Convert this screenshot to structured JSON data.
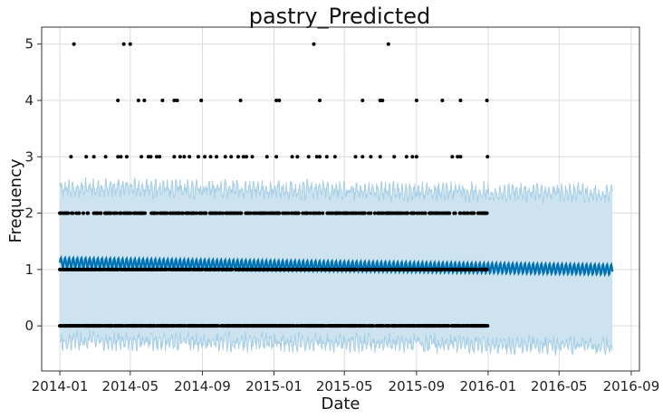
{
  "chart_data": {
    "type": "scatter",
    "title": "pastry_Predicted",
    "xlabel": "Date",
    "ylabel": "Frequency",
    "x_axis_type": "date",
    "xlim": [
      "2013-12-01",
      "2016-09-15"
    ],
    "ylim": [
      -0.8,
      5.3
    ],
    "grid": true,
    "x_ticks": [
      "2014-01",
      "2014-05",
      "2014-09",
      "2015-01",
      "2015-05",
      "2015-09",
      "2016-01",
      "2016-05",
      "2016-09"
    ],
    "y_ticks": [
      0,
      1,
      2,
      3,
      4,
      5
    ],
    "observed": {
      "start": "2014-01-01",
      "end": "2015-12-31",
      "color": "#000000",
      "levels": [
        {
          "y": 0,
          "dates": "near-daily"
        },
        {
          "y": 1,
          "dates": "near-daily"
        },
        {
          "y": 2,
          "dates": "frequent"
        },
        {
          "y": 3,
          "dates": [
            "2014-01-20",
            "2014-02-15",
            "2014-02-28",
            "2014-03-20",
            "2014-04-10",
            "2014-04-15",
            "2014-04-25",
            "2014-05-20",
            "2014-06-01",
            "2014-06-05",
            "2014-06-15",
            "2014-06-20",
            "2014-07-15",
            "2014-07-25",
            "2014-08-01",
            "2014-08-10",
            "2014-08-25",
            "2014-09-05",
            "2014-09-15",
            "2014-09-25",
            "2014-10-10",
            "2014-10-20",
            "2014-11-01",
            "2014-11-10",
            "2014-11-15",
            "2014-11-25",
            "2014-12-20",
            "2015-01-05",
            "2015-02-01",
            "2015-02-10",
            "2015-03-01",
            "2015-03-15",
            "2015-03-20",
            "2015-04-01",
            "2015-04-15",
            "2015-05-20",
            "2015-06-01",
            "2015-06-15",
            "2015-07-01",
            "2015-07-25",
            "2015-08-15",
            "2015-08-25",
            "2015-09-01",
            "2015-11-01",
            "2015-11-10",
            "2015-11-15",
            "2015-12-31"
          ]
        },
        {
          "y": 4,
          "dates": [
            "2014-04-10",
            "2014-05-15",
            "2014-05-25",
            "2014-06-25",
            "2014-07-15",
            "2014-07-20",
            "2014-08-30",
            "2014-11-05",
            "2015-01-05",
            "2015-01-10",
            "2015-03-20",
            "2015-06-01",
            "2015-07-01",
            "2015-07-05",
            "2015-09-01",
            "2015-10-15",
            "2015-11-15",
            "2015-12-30"
          ]
        },
        {
          "y": 5,
          "dates": [
            "2014-01-25",
            "2014-04-20",
            "2014-05-01",
            "2015-03-10",
            "2015-07-15"
          ]
        }
      ]
    },
    "forecast": {
      "start": "2014-01-01",
      "end": "2016-07-31",
      "line_color": "#0072B2",
      "band_color": "#CDE3F0",
      "band_edge_color": "#A9CFE6",
      "yhat_start": 1.12,
      "yhat_end": 1.0,
      "weekly_amplitude": 0.09,
      "upper_start": 2.45,
      "upper_end": 2.35,
      "lower_start": -0.25,
      "lower_end": -0.35
    }
  }
}
